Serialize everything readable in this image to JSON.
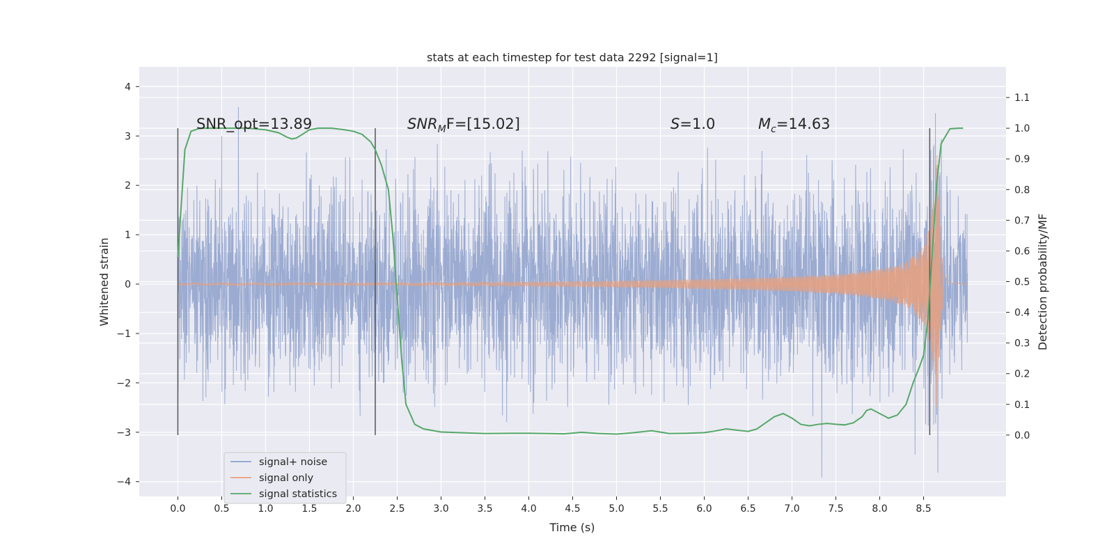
{
  "chart_data": {
    "type": "line",
    "title": "stats at each timestep for test data 2292 [signal=1]",
    "xlabel": "Time (s)",
    "ylabel_left": "Whitened strain",
    "ylabel_right": "Detection probability/MF",
    "xlim": [
      -0.44,
      9.44
    ],
    "ylim_left": [
      -4.3,
      4.4
    ],
    "ylim_right": [
      -0.2,
      1.2
    ],
    "x_ticks": [
      "0.0",
      "0.5",
      "1.0",
      "1.5",
      "2.0",
      "2.5",
      "3.0",
      "3.5",
      "4.0",
      "4.5",
      "5.0",
      "5.5",
      "6.0",
      "6.5",
      "7.0",
      "7.5",
      "8.0",
      "8.5"
    ],
    "y_ticks_left": [
      "−4",
      "−3",
      "−2",
      "−1",
      "0",
      "1",
      "2",
      "3",
      "4"
    ],
    "y_ticks_right": [
      "0.0",
      "0.1",
      "0.2",
      "0.3",
      "0.4",
      "0.5",
      "0.6",
      "0.7",
      "0.8",
      "0.9",
      "1.0",
      "1.1"
    ],
    "grid": true,
    "legend_position": "bottom-left",
    "colors": {
      "signal_noise": "#8da0cb",
      "signal_only": "#e8a07e",
      "signal_statistics": "#55a868",
      "vlines": "#555555",
      "background": "#eaeaf2"
    },
    "annotations": {
      "snr_opt": "SNR_opt=13.89",
      "snr_mf_pre": "SNR",
      "snr_mf_sub": "M",
      "snr_mf_post": "F=[15.02]",
      "s_label": "S",
      "s_value": "=1.0",
      "mc_label": "M",
      "mc_sub": "c",
      "mc_value": "=14.63"
    },
    "vertical_lines_x": [
      0.0,
      2.25,
      8.57
    ],
    "series": [
      {
        "name": "signal+ noise",
        "description_values": "whitened strain noise envelope",
        "t_range": [
          0.0,
          9.0
        ],
        "typical_abs_amplitude": 1.3,
        "min": -3.8,
        "max": 4.0
      },
      {
        "name": "signal only",
        "t": [
          0.0,
          3.0,
          4.5,
          5.5,
          6.5,
          7.0,
          7.5,
          8.0,
          8.3,
          8.5,
          8.6,
          8.65,
          8.7,
          8.8,
          9.0
        ],
        "envelope": [
          0.02,
          0.03,
          0.05,
          0.08,
          0.12,
          0.15,
          0.2,
          0.3,
          0.45,
          0.8,
          1.4,
          2.8,
          0.6,
          0.05,
          0.0
        ]
      },
      {
        "name": "signal statistics",
        "x": [
          0.0,
          0.08,
          0.15,
          0.25,
          0.4,
          0.6,
          0.8,
          1.0,
          1.15,
          1.25,
          1.3,
          1.35,
          1.42,
          1.5,
          1.6,
          1.75,
          1.9,
          2.0,
          2.1,
          2.2,
          2.25,
          2.32,
          2.4,
          2.45,
          2.5,
          2.55,
          2.6,
          2.7,
          2.8,
          2.9,
          3.0,
          3.2,
          3.5,
          3.8,
          4.0,
          4.2,
          4.4,
          4.6,
          4.8,
          5.0,
          5.2,
          5.4,
          5.6,
          5.8,
          6.0,
          6.1,
          6.25,
          6.4,
          6.5,
          6.6,
          6.7,
          6.8,
          6.9,
          7.0,
          7.1,
          7.2,
          7.3,
          7.4,
          7.5,
          7.6,
          7.7,
          7.8,
          7.85,
          7.9,
          8.0,
          8.1,
          8.2,
          8.3,
          8.38,
          8.45,
          8.5,
          8.55,
          8.6,
          8.65,
          8.7,
          8.8,
          8.9,
          8.95
        ],
        "y": [
          0.58,
          0.93,
          0.99,
          1.0,
          1.0,
          1.0,
          1.0,
          0.995,
          0.985,
          0.97,
          0.965,
          0.968,
          0.98,
          0.995,
          1.0,
          1.0,
          0.995,
          0.99,
          0.98,
          0.955,
          0.93,
          0.88,
          0.8,
          0.65,
          0.45,
          0.25,
          0.1,
          0.035,
          0.02,
          0.015,
          0.01,
          0.008,
          0.005,
          0.006,
          0.006,
          0.005,
          0.004,
          0.009,
          0.005,
          0.003,
          0.008,
          0.014,
          0.005,
          0.006,
          0.008,
          0.012,
          0.02,
          0.015,
          0.012,
          0.02,
          0.04,
          0.06,
          0.07,
          0.055,
          0.035,
          0.03,
          0.035,
          0.038,
          0.035,
          0.033,
          0.04,
          0.06,
          0.08,
          0.085,
          0.07,
          0.055,
          0.065,
          0.1,
          0.17,
          0.22,
          0.26,
          0.38,
          0.6,
          0.82,
          0.95,
          0.998,
          1.0,
          1.0
        ]
      }
    ]
  }
}
